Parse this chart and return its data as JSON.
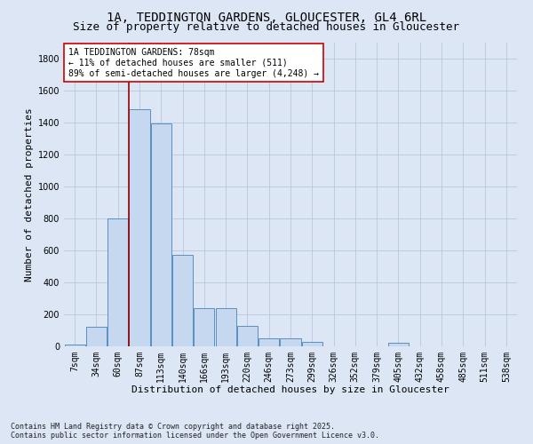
{
  "title1": "1A, TEDDINGTON GARDENS, GLOUCESTER, GL4 6RL",
  "title2": "Size of property relative to detached houses in Gloucester",
  "xlabel": "Distribution of detached houses by size in Gloucester",
  "ylabel": "Number of detached properties",
  "bar_labels": [
    "7sqm",
    "34sqm",
    "60sqm",
    "87sqm",
    "113sqm",
    "140sqm",
    "166sqm",
    "193sqm",
    "220sqm",
    "246sqm",
    "273sqm",
    "299sqm",
    "326sqm",
    "352sqm",
    "379sqm",
    "405sqm",
    "432sqm",
    "458sqm",
    "485sqm",
    "511sqm",
    "538sqm"
  ],
  "bar_values": [
    10,
    120,
    800,
    1480,
    1390,
    570,
    240,
    240,
    130,
    50,
    50,
    30,
    0,
    0,
    0,
    20,
    0,
    0,
    0,
    0,
    0
  ],
  "bar_color": "#c5d8f0",
  "bar_edge_color": "#5a8fc0",
  "vline_color": "#990000",
  "annotation_text": "1A TEDDINGTON GARDENS: 78sqm\n← 11% of detached houses are smaller (511)\n89% of semi-detached houses are larger (4,248) →",
  "annotation_box_color": "#ffffff",
  "annotation_box_edge": "#cc0000",
  "ylim": [
    0,
    1900
  ],
  "yticks": [
    0,
    200,
    400,
    600,
    800,
    1000,
    1200,
    1400,
    1600,
    1800
  ],
  "plot_bg_color": "#dce6f5",
  "fig_bg_color": "#dce6f5",
  "grid_color": "#b8c8dc",
  "footer_text": "Contains HM Land Registry data © Crown copyright and database right 2025.\nContains public sector information licensed under the Open Government Licence v3.0.",
  "title1_fontsize": 10,
  "title2_fontsize": 9,
  "tick_fontsize": 7,
  "ylabel_fontsize": 8,
  "xlabel_fontsize": 8,
  "annotation_fontsize": 7,
  "footer_fontsize": 6
}
